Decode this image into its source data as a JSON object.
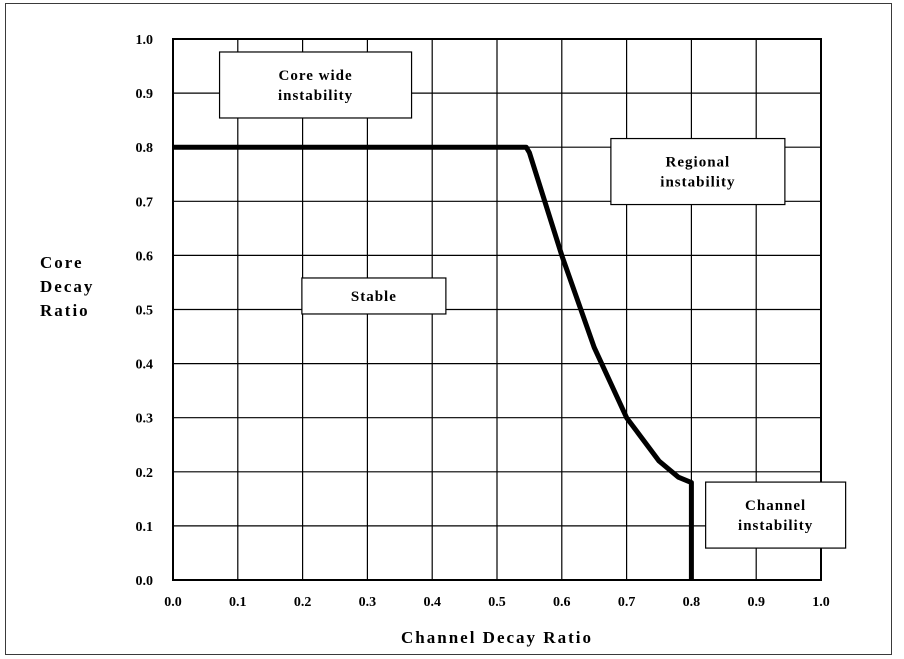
{
  "chart_data": {
    "type": "line",
    "xlabel": "Channel Decay Ratio",
    "ylabel": [
      "Core",
      "Decay",
      "Ratio"
    ],
    "xlim": [
      0.0,
      1.0
    ],
    "ylim": [
      0.0,
      1.0
    ],
    "x_ticks": [
      "0.0",
      "0.1",
      "0.2",
      "0.3",
      "0.4",
      "0.5",
      "0.6",
      "0.7",
      "0.8",
      "0.9",
      "1.0"
    ],
    "y_ticks": [
      "0.0",
      "0.1",
      "0.2",
      "0.3",
      "0.4",
      "0.5",
      "0.6",
      "0.7",
      "0.8",
      "0.9",
      "1.0"
    ],
    "grid": true,
    "series": [
      {
        "x": [
          0.0,
          0.545,
          0.55,
          0.6,
          0.65,
          0.7,
          0.75,
          0.78,
          0.8,
          0.8
        ],
        "y": [
          0.8,
          0.8,
          0.79,
          0.6,
          0.43,
          0.3,
          0.22,
          0.19,
          0.18,
          0.0
        ]
      }
    ],
    "annotations": [
      {
        "lines": [
          "Core wide",
          "instability"
        ],
        "x": 0.22,
        "y": 0.915
      },
      {
        "lines": [
          "Regional",
          "instability"
        ],
        "x": 0.81,
        "y": 0.755
      },
      {
        "lines": [
          "Stable"
        ],
        "x": 0.31,
        "y": 0.525
      },
      {
        "lines": [
          "Channel",
          "instability"
        ],
        "x": 0.93,
        "y": 0.12
      }
    ]
  }
}
